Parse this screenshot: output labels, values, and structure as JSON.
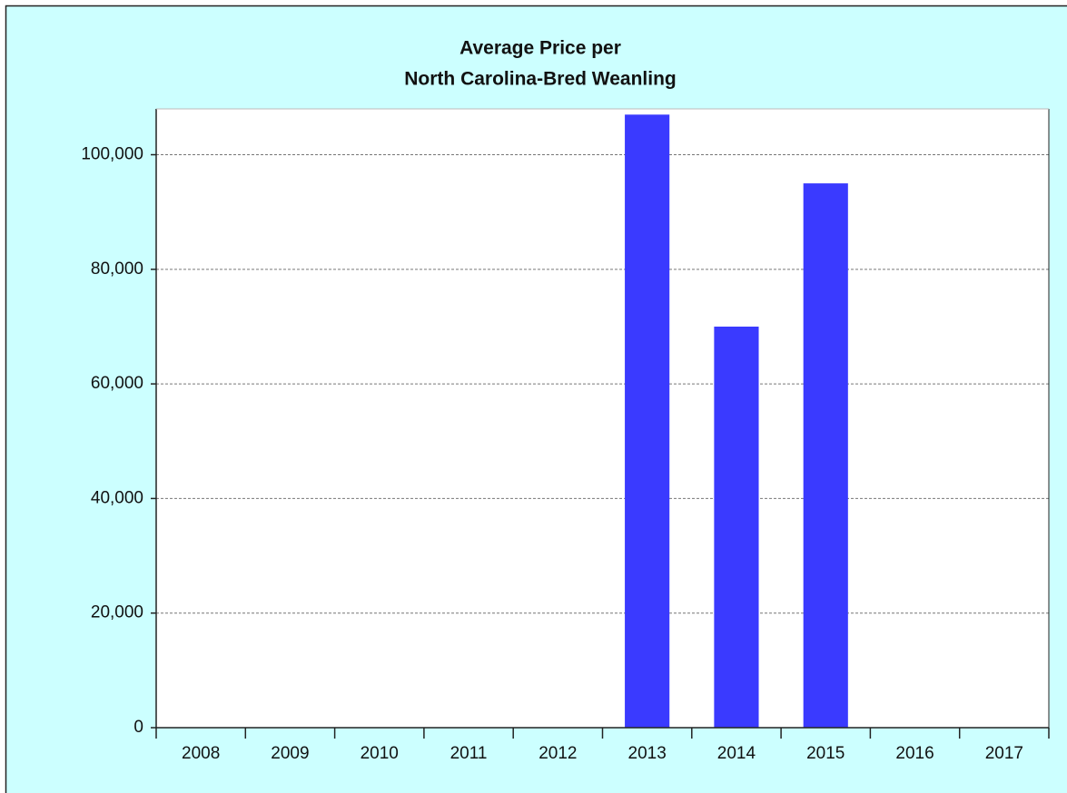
{
  "chart_data": {
    "type": "bar",
    "title": [
      "Average Price per",
      "North Carolina-Bred Weanling"
    ],
    "categories": [
      "2008",
      "2009",
      "2010",
      "2011",
      "2012",
      "2013",
      "2014",
      "2015",
      "2016",
      "2017"
    ],
    "values": [
      null,
      null,
      null,
      null,
      null,
      107000,
      70000,
      95000,
      null,
      null
    ],
    "color": "#3a3aff",
    "ylim": [
      0,
      108000
    ],
    "yticks": [
      0,
      {
        "value": 20000,
        "label": "20,000"
      },
      {
        "value": 40000,
        "label": "40,000"
      },
      {
        "value": 60000,
        "label": "60,000"
      },
      {
        "value": 80000,
        "label": "80,000"
      },
      {
        "value": 100000,
        "label": "100,000"
      }
    ],
    "grid": true
  }
}
